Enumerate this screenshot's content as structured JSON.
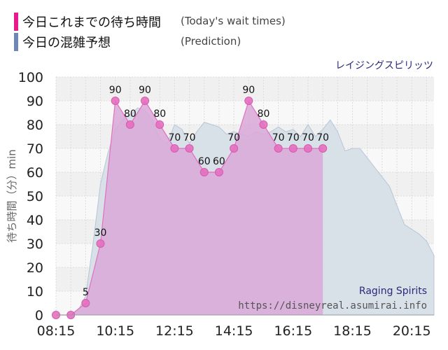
{
  "legend": {
    "actual_label": "今日これまでの待ち時間",
    "actual_sub": "(Today's wait times)",
    "prediction_label": "今日の混雑予想",
    "prediction_sub": "(Prediction)"
  },
  "attraction_name": "レイジングスピリッツ",
  "watermark": {
    "name": "Raging Spirits",
    "url": "https://disneyreal.asumirai.info"
  },
  "colors": {
    "actual": "#e8198b",
    "actual_fill": "#d9a8d8",
    "actual_point": "#e46fbf",
    "prediction": "#6f87b5",
    "prediction_fill": "#d6dee7",
    "title": "#2a2a7a",
    "watermark_name": "#2a2a7a",
    "watermark_url": "#555555"
  },
  "chart_data": {
    "type": "area",
    "ylabel": "待ち時間（分）min",
    "ylim": [
      0,
      100
    ],
    "yticks": [
      0,
      10,
      20,
      30,
      40,
      50,
      60,
      70,
      80,
      90,
      100
    ],
    "xlim": [
      "08:15",
      "21:00"
    ],
    "xticks": [
      "08:15",
      "10:15",
      "12:15",
      "14:15",
      "16:15",
      "18:15",
      "20:15"
    ],
    "grid": true,
    "series": [
      {
        "name": "今日これまでの待ち時間",
        "x": [
          "08:15",
          "08:45",
          "09:15",
          "09:45",
          "10:15",
          "10:45",
          "11:15",
          "11:45",
          "12:15",
          "12:45",
          "13:15",
          "13:45",
          "14:15",
          "14:45",
          "15:15",
          "15:45",
          "16:15",
          "16:45",
          "17:15"
        ],
        "values": [
          0,
          0,
          5,
          30,
          90,
          80,
          90,
          80,
          70,
          70,
          60,
          60,
          70,
          90,
          80,
          70,
          70,
          70,
          70
        ],
        "data_labels": [
          "",
          "",
          "5",
          "30",
          "90",
          "80",
          "90",
          "80",
          "70",
          "70",
          "60",
          "60",
          "70",
          "90",
          "80",
          "70",
          "70",
          "70",
          "70"
        ]
      },
      {
        "name": "今日の混雑予想",
        "x": [
          "08:15",
          "08:45",
          "09:00",
          "09:15",
          "09:30",
          "09:45",
          "10:00",
          "10:15",
          "10:30",
          "10:45",
          "11:00",
          "11:15",
          "11:30",
          "11:45",
          "12:00",
          "12:15",
          "12:30",
          "12:45",
          "13:00",
          "13:15",
          "13:30",
          "13:45",
          "14:00",
          "14:15",
          "14:30",
          "14:45",
          "15:00",
          "15:15",
          "15:30",
          "15:45",
          "16:00",
          "16:15",
          "16:30",
          "16:45",
          "17:00",
          "17:15",
          "17:30",
          "17:45",
          "18:00",
          "18:15",
          "18:30",
          "18:45",
          "19:00",
          "19:15",
          "19:30",
          "19:45",
          "20:00",
          "20:15",
          "20:30",
          "20:45",
          "21:00"
        ],
        "values": [
          0,
          0,
          2,
          8,
          30,
          55,
          68,
          78,
          82,
          84,
          87,
          86,
          82,
          74,
          72,
          80,
          78,
          72,
          77,
          81,
          80,
          79,
          76,
          77,
          76,
          75,
          77,
          76,
          77,
          79,
          77,
          78,
          75,
          80,
          75,
          78,
          82,
          77,
          69,
          70,
          70,
          66,
          62,
          58,
          54,
          46,
          38,
          36,
          34,
          31,
          25
        ]
      }
    ]
  }
}
